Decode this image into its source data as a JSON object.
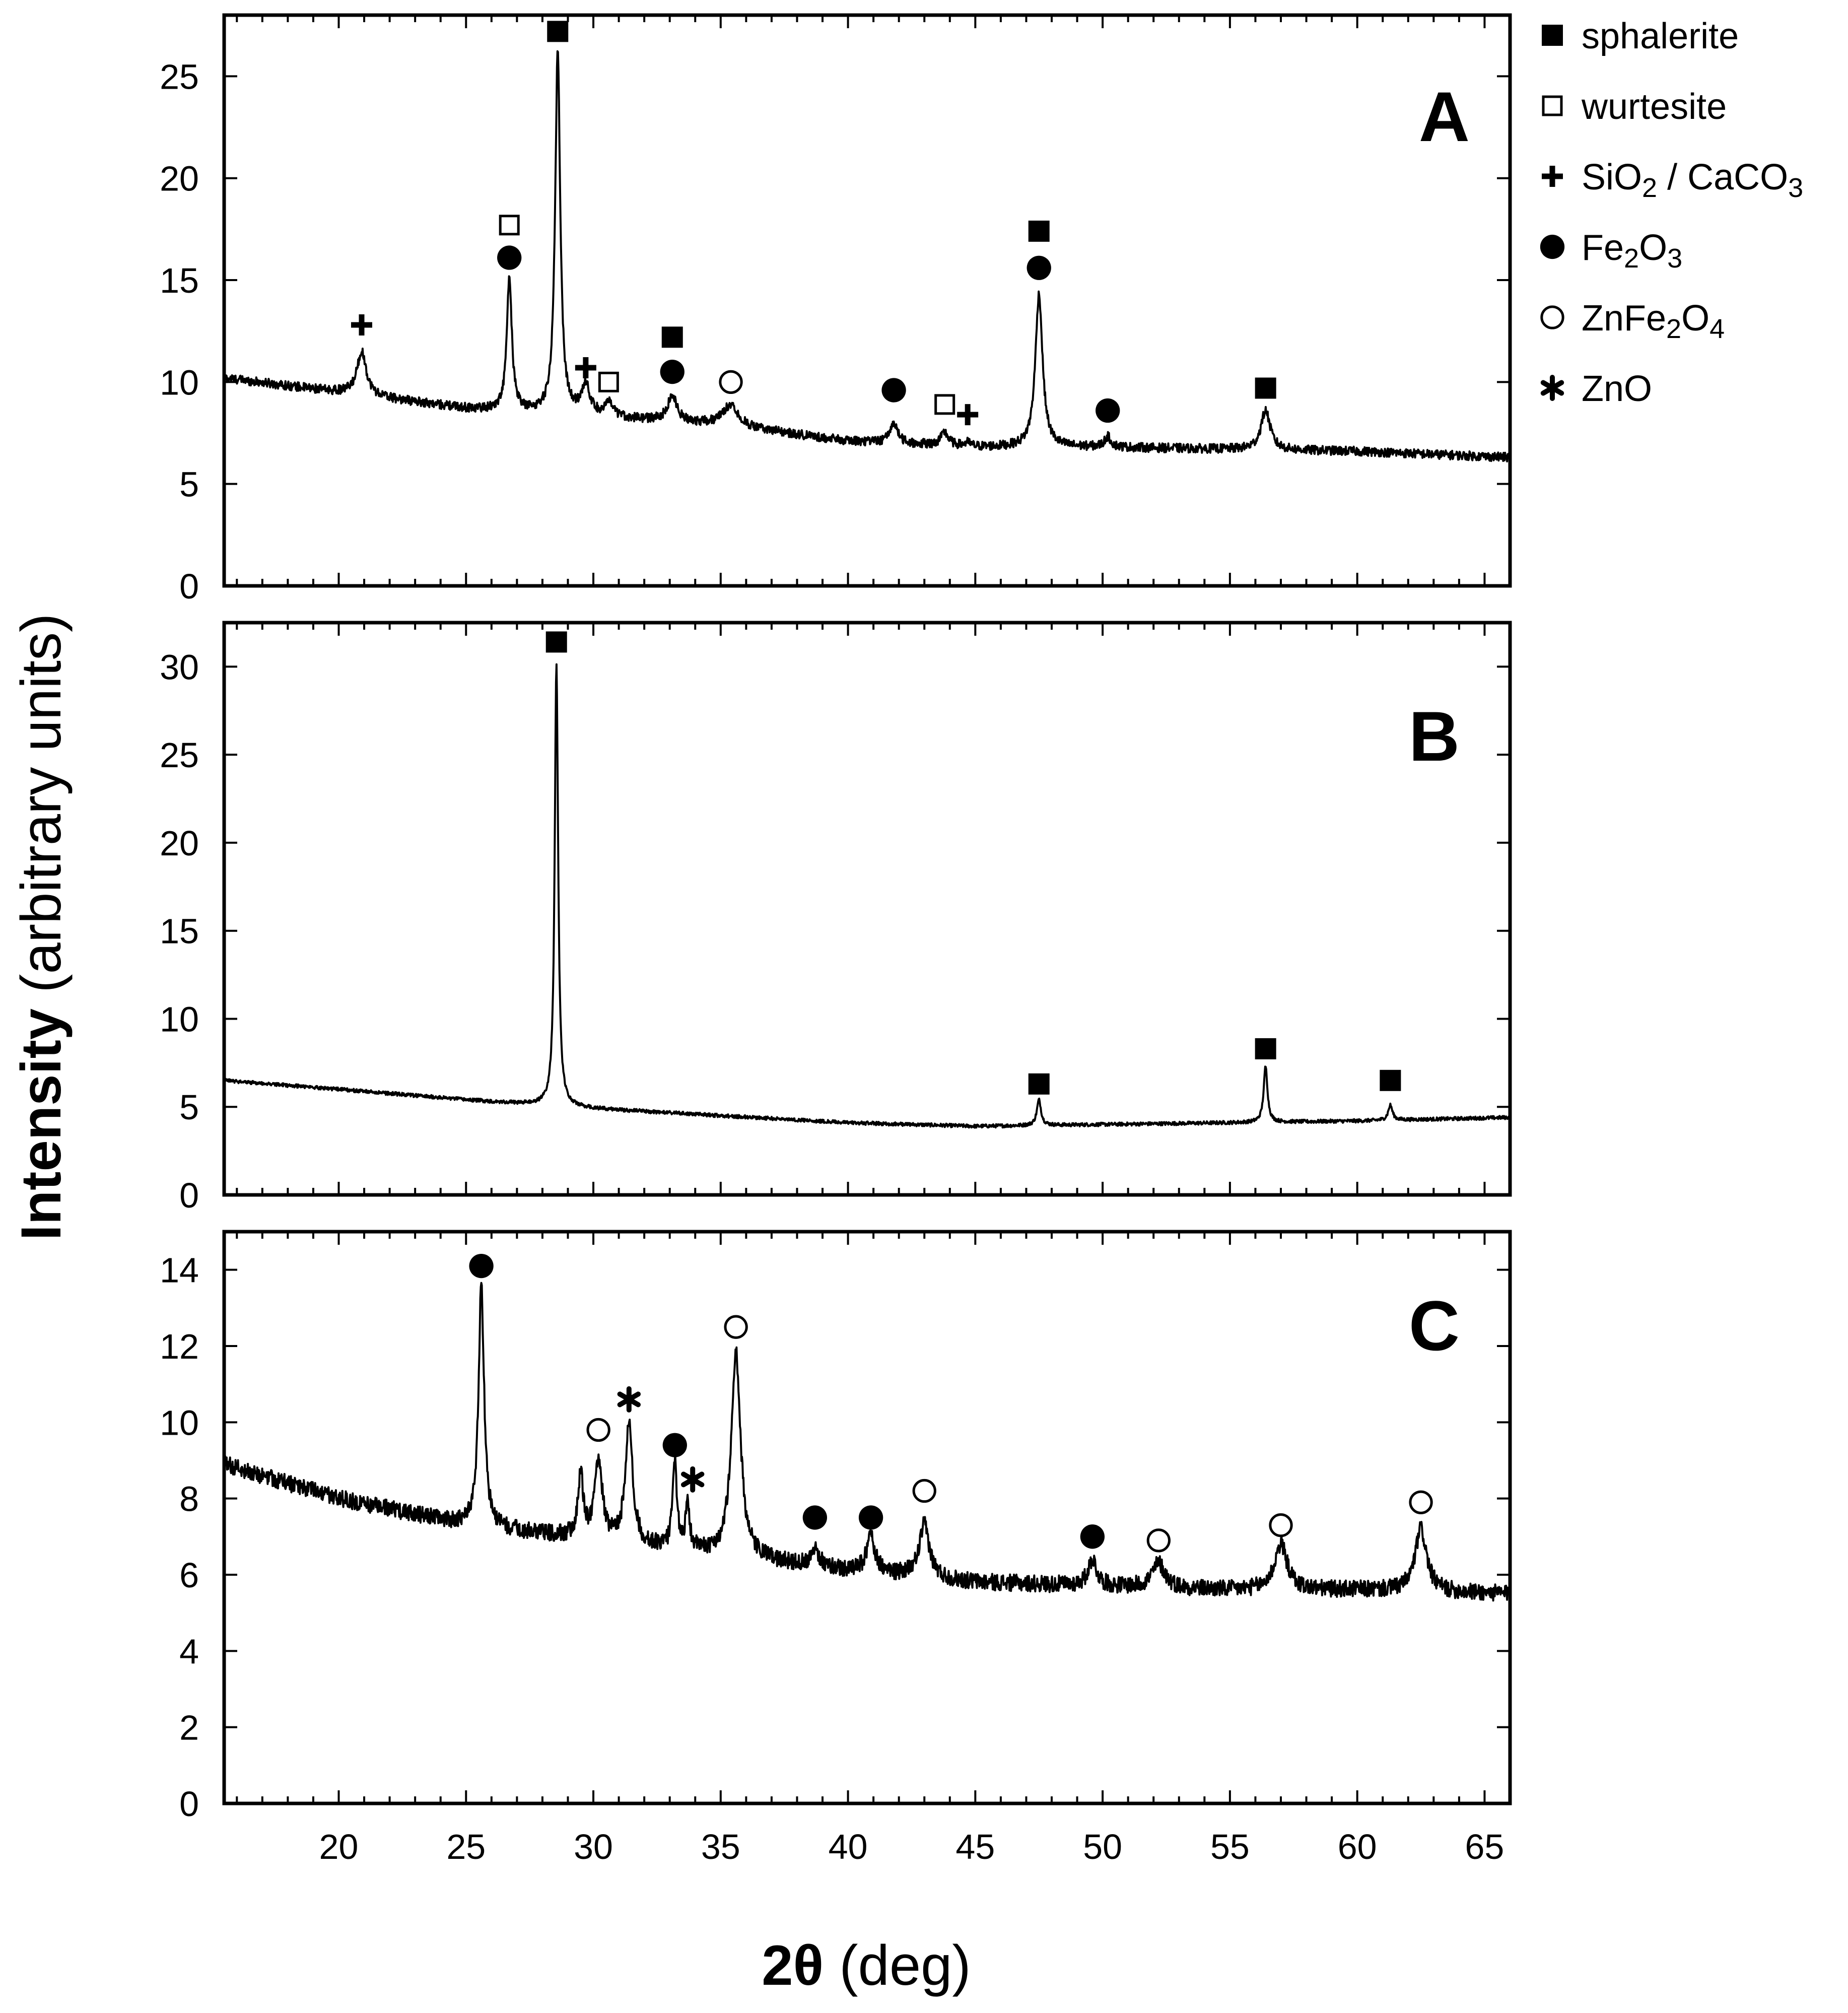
{
  "chart_data": [
    {
      "type": "line",
      "panel": "A",
      "title": "A",
      "xlabel": "2θ (deg)",
      "ylabel": "Intensity (arbitrary units)",
      "xlim": [
        15.5,
        66
      ],
      "ylim": [
        0,
        28
      ],
      "yticks": [
        0,
        5,
        10,
        15,
        20,
        25
      ],
      "xticks": [
        20,
        25,
        30,
        35,
        40,
        45,
        50,
        55,
        60,
        65
      ],
      "baseline": [
        [
          15.5,
          10.2
        ],
        [
          20,
          9.5
        ],
        [
          25,
          8.7
        ],
        [
          30,
          8.3
        ],
        [
          35,
          7.9
        ],
        [
          40,
          7.1
        ],
        [
          45,
          6.8
        ],
        [
          50,
          6.8
        ],
        [
          55,
          6.7
        ],
        [
          60,
          6.6
        ],
        [
          66,
          6.3
        ]
      ],
      "peaks": [
        {
          "x": 20.9,
          "y": 11.5,
          "w": 0.22
        },
        {
          "x": 26.7,
          "y": 15.0,
          "w": 0.12
        },
        {
          "x": 28.6,
          "y": 26.1,
          "w": 0.12
        },
        {
          "x": 29.7,
          "y": 9.8,
          "w": 0.2
        },
        {
          "x": 30.6,
          "y": 8.9,
          "w": 0.2
        },
        {
          "x": 33.1,
          "y": 9.3,
          "w": 0.22
        },
        {
          "x": 35.4,
          "y": 8.9,
          "w": 0.35
        },
        {
          "x": 41.8,
          "y": 8.0,
          "w": 0.18
        },
        {
          "x": 43.8,
          "y": 7.5,
          "w": 0.18
        },
        {
          "x": 44.7,
          "y": 7.0,
          "w": 0.15
        },
        {
          "x": 47.5,
          "y": 14.3,
          "w": 0.17
        },
        {
          "x": 50.2,
          "y": 7.3,
          "w": 0.15
        },
        {
          "x": 56.4,
          "y": 8.6,
          "w": 0.22
        }
      ],
      "noise": 0.22,
      "markers": [
        {
          "x": 20.9,
          "y": 12.8,
          "symbol": "plus"
        },
        {
          "x": 26.7,
          "y": 17.7,
          "symbol": "open-square"
        },
        {
          "x": 26.7,
          "y": 16.1,
          "symbol": "filled-circle"
        },
        {
          "x": 28.6,
          "y": 27.2,
          "symbol": "filled-square"
        },
        {
          "x": 29.7,
          "y": 10.7,
          "symbol": "plus"
        },
        {
          "x": 30.6,
          "y": 10.0,
          "symbol": "open-square"
        },
        {
          "x": 33.1,
          "y": 12.2,
          "symbol": "filled-square"
        },
        {
          "x": 33.1,
          "y": 10.5,
          "symbol": "filled-circle"
        },
        {
          "x": 35.4,
          "y": 10.0,
          "symbol": "open-circle"
        },
        {
          "x": 41.8,
          "y": 9.6,
          "symbol": "filled-circle"
        },
        {
          "x": 43.8,
          "y": 8.9,
          "symbol": "open-square"
        },
        {
          "x": 44.7,
          "y": 8.4,
          "symbol": "plus"
        },
        {
          "x": 47.5,
          "y": 17.4,
          "symbol": "filled-square"
        },
        {
          "x": 47.5,
          "y": 15.6,
          "symbol": "filled-circle"
        },
        {
          "x": 50.2,
          "y": 8.6,
          "symbol": "filled-circle"
        },
        {
          "x": 56.4,
          "y": 9.7,
          "symbol": "filled-square"
        }
      ]
    },
    {
      "type": "line",
      "panel": "B",
      "title": "B",
      "xlabel": "2θ (deg)",
      "ylabel": "Intensity (arbitrary units)",
      "xlim": [
        15.5,
        66
      ],
      "ylim": [
        0,
        32.5
      ],
      "yticks": [
        0,
        5,
        10,
        15,
        20,
        25,
        30
      ],
      "xticks": [
        20,
        25,
        30,
        35,
        40,
        45,
        50,
        55,
        60,
        65
      ],
      "baseline": [
        [
          15.5,
          6.5
        ],
        [
          20,
          6.0
        ],
        [
          25,
          5.4
        ],
        [
          30,
          4.9
        ],
        [
          35,
          4.5
        ],
        [
          40,
          4.1
        ],
        [
          45,
          3.9
        ],
        [
          50,
          4.0
        ],
        [
          55,
          4.1
        ],
        [
          60,
          4.2
        ],
        [
          66,
          4.4
        ]
      ],
      "peaks": [
        {
          "x": 28.55,
          "y": 30.2,
          "w": 0.08
        },
        {
          "x": 47.5,
          "y": 5.4,
          "w": 0.1
        },
        {
          "x": 56.4,
          "y": 7.3,
          "w": 0.09
        },
        {
          "x": 61.3,
          "y": 5.1,
          "w": 0.1
        }
      ],
      "noise": 0.1,
      "markers": [
        {
          "x": 28.55,
          "y": 31.4,
          "symbol": "filled-square"
        },
        {
          "x": 47.5,
          "y": 6.3,
          "symbol": "filled-square"
        },
        {
          "x": 56.4,
          "y": 8.3,
          "symbol": "filled-square"
        },
        {
          "x": 61.3,
          "y": 6.5,
          "symbol": "filled-square"
        }
      ]
    },
    {
      "type": "line",
      "panel": "C",
      "title": "C",
      "xlabel": "2θ (deg)",
      "ylabel": "Intensity (arbitrary units)",
      "xlim": [
        15.5,
        66
      ],
      "ylim": [
        0,
        15
      ],
      "yticks": [
        0,
        2,
        4,
        6,
        8,
        10,
        12,
        14
      ],
      "xticks": [
        20,
        25,
        30,
        35,
        40,
        45,
        50,
        55,
        60,
        65
      ],
      "baseline": [
        [
          15.5,
          8.9
        ],
        [
          20,
          8.0
        ],
        [
          25,
          7.3
        ],
        [
          30,
          6.9
        ],
        [
          35,
          6.5
        ],
        [
          40,
          6.1
        ],
        [
          45,
          5.8
        ],
        [
          50,
          5.7
        ],
        [
          55,
          5.6
        ],
        [
          60,
          5.6
        ],
        [
          66,
          5.5
        ]
      ],
      "peaks": [
        {
          "x": 25.6,
          "y": 13.6,
          "w": 0.13
        },
        {
          "x": 29.5,
          "y": 8.6,
          "w": 0.12
        },
        {
          "x": 30.2,
          "y": 9.0,
          "w": 0.18
        },
        {
          "x": 31.4,
          "y": 10.0,
          "w": 0.17
        },
        {
          "x": 33.2,
          "y": 8.9,
          "w": 0.1
        },
        {
          "x": 33.7,
          "y": 7.7,
          "w": 0.1
        },
        {
          "x": 35.6,
          "y": 11.8,
          "w": 0.22
        },
        {
          "x": 38.7,
          "y": 6.7,
          "w": 0.18
        },
        {
          "x": 40.9,
          "y": 7.0,
          "w": 0.2
        },
        {
          "x": 43.0,
          "y": 7.3,
          "w": 0.24
        },
        {
          "x": 49.6,
          "y": 6.4,
          "w": 0.2
        },
        {
          "x": 52.2,
          "y": 6.3,
          "w": 0.3
        },
        {
          "x": 57.0,
          "y": 6.8,
          "w": 0.3
        },
        {
          "x": 62.5,
          "y": 7.2,
          "w": 0.27
        }
      ],
      "noise": 0.22,
      "markers": [
        {
          "x": 25.6,
          "y": 14.1,
          "symbol": "filled-circle"
        },
        {
          "x": 30.2,
          "y": 9.8,
          "symbol": "open-circle"
        },
        {
          "x": 31.4,
          "y": 10.6,
          "symbol": "asterisk"
        },
        {
          "x": 33.2,
          "y": 9.4,
          "symbol": "filled-circle"
        },
        {
          "x": 33.9,
          "y": 8.5,
          "symbol": "asterisk"
        },
        {
          "x": 35.6,
          "y": 12.5,
          "symbol": "open-circle"
        },
        {
          "x": 38.7,
          "y": 7.5,
          "symbol": "filled-circle"
        },
        {
          "x": 40.9,
          "y": 7.5,
          "symbol": "filled-circle"
        },
        {
          "x": 43.0,
          "y": 8.2,
          "symbol": "open-circle"
        },
        {
          "x": 49.6,
          "y": 7.0,
          "symbol": "filled-circle"
        },
        {
          "x": 52.2,
          "y": 6.9,
          "symbol": "open-circle"
        },
        {
          "x": 57.0,
          "y": 7.3,
          "symbol": "open-circle"
        },
        {
          "x": 62.5,
          "y": 7.9,
          "symbol": "open-circle"
        }
      ]
    }
  ],
  "axis_titles": {
    "y_bold": "Intensity",
    "y_rest": " (arbitrary units)",
    "x_bold": "2θ",
    "x_rest": " (deg)"
  },
  "legend": [
    {
      "symbol": "filled-square",
      "label": "sphalerite",
      "parts": [
        {
          "t": "sphalerite"
        }
      ]
    },
    {
      "symbol": "open-square",
      "label": "wurtesite",
      "parts": [
        {
          "t": "wurtesite"
        }
      ]
    },
    {
      "symbol": "plus",
      "label": "SiO2 / CaCO3",
      "parts": [
        {
          "t": "SiO"
        },
        {
          "t": "2",
          "sub": true
        },
        {
          "t": " / CaCO"
        },
        {
          "t": "3",
          "sub": true
        }
      ]
    },
    {
      "symbol": "filled-circle",
      "label": "Fe2O3",
      "parts": [
        {
          "t": "Fe"
        },
        {
          "t": "2",
          "sub": true
        },
        {
          "t": "O"
        },
        {
          "t": "3",
          "sub": true
        }
      ]
    },
    {
      "symbol": "open-circle",
      "label": "ZnFe2O4",
      "parts": [
        {
          "t": "ZnFe"
        },
        {
          "t": "2",
          "sub": true
        },
        {
          "t": "O"
        },
        {
          "t": "4",
          "sub": true
        }
      ]
    },
    {
      "symbol": "asterisk",
      "label": "ZnO",
      "parts": [
        {
          "t": "ZnO"
        }
      ]
    }
  ]
}
